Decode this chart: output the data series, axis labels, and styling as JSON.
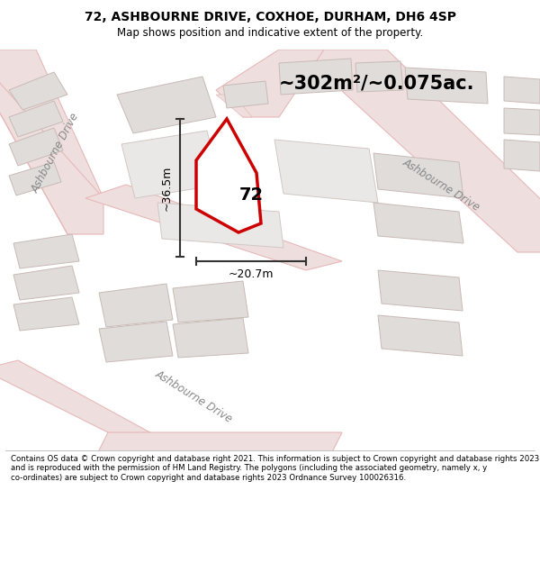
{
  "title_line1": "72, ASHBOURNE DRIVE, COXHOE, DURHAM, DH6 4SP",
  "title_line2": "Map shows position and indicative extent of the property.",
  "area_text": "~302m²/~0.075ac.",
  "number_label": "72",
  "dim_width": "~20.7m",
  "dim_height": "~36.5m",
  "footer": "Contains OS data © Crown copyright and database right 2021. This information is subject to Crown copyright and database rights 2023 and is reproduced with the permission of HM Land Registry. The polygons (including the associated geometry, namely x, y co-ordinates) are subject to Crown copyright and database rights 2023 Ordnance Survey 100026316.",
  "map_bg": "#f2efed",
  "road_color": "#e8b8b8",
  "road_fill": "#eedede",
  "plot_outline_color": "#cc0000",
  "building_fill": "#e0dcda",
  "building_stroke": "#c8bab5",
  "parcel_fill": "#eae8e6",
  "parcel_stroke": "#d0c8c4",
  "white": "#ffffff",
  "text_color": "#888888",
  "dim_color": "#333333"
}
